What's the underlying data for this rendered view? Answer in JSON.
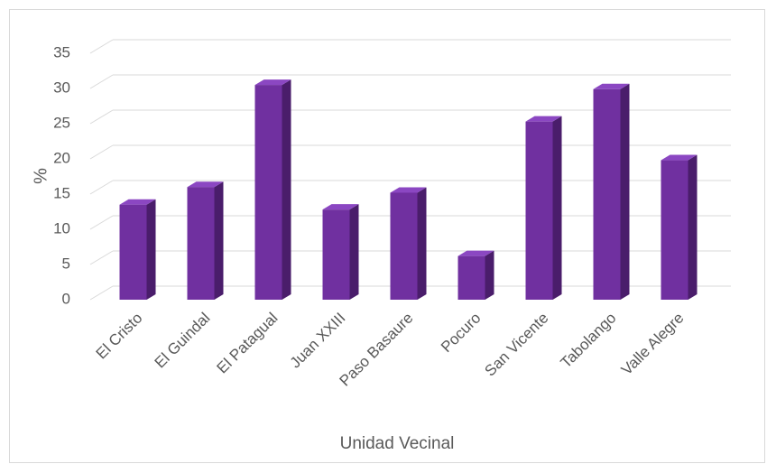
{
  "chart_data": {
    "type": "bar3d",
    "categories": [
      "El Cristo",
      "El Guindal",
      "El Patagual",
      "Juan XXIII",
      "Paso Basaure",
      "Pocuro",
      "San Vicente",
      "Tabolango",
      "Valle Alegre"
    ],
    "values": [
      13.5,
      16,
      30.5,
      12.8,
      15.2,
      6.2,
      25.3,
      29.9,
      19.8
    ],
    "color": "#7030a0",
    "ylim": [
      0,
      35
    ],
    "yticks": [
      0,
      5,
      10,
      15,
      20,
      25,
      30,
      35
    ],
    "grid": true,
    "y_label": "%",
    "x_label": "Unidad Vecinal"
  }
}
